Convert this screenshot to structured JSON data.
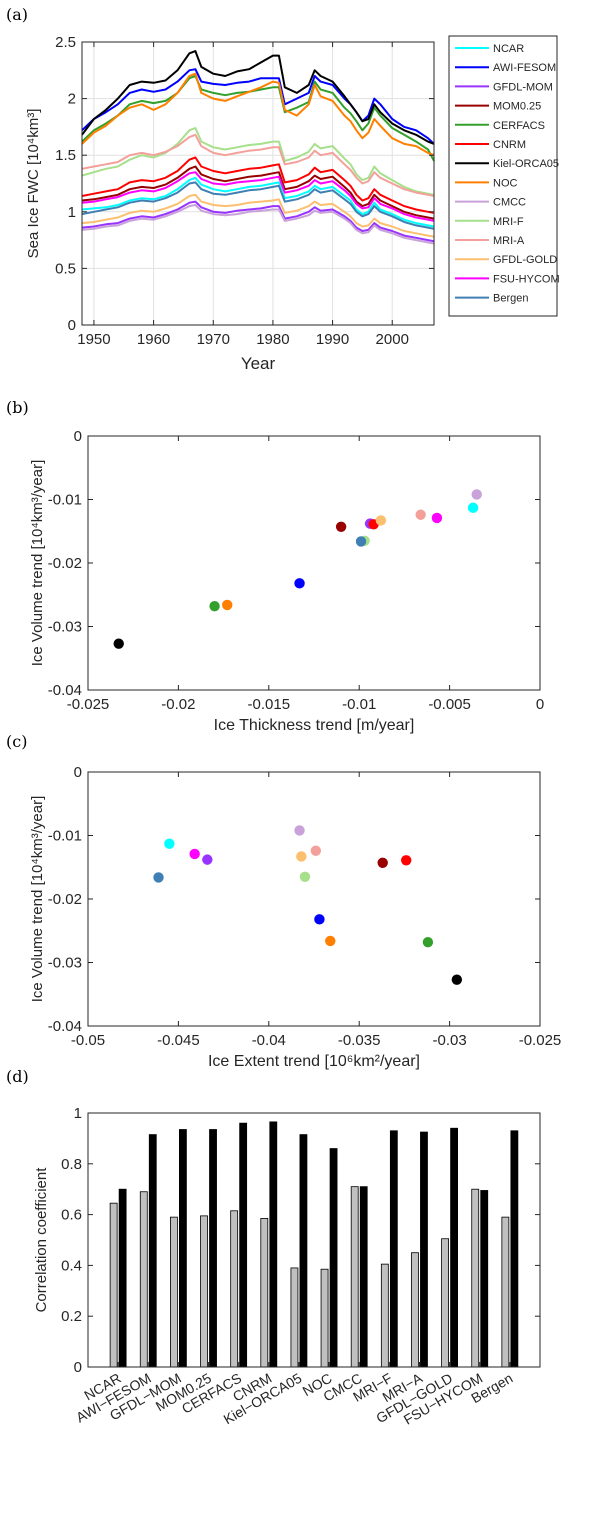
{
  "panel_labels": [
    "(a)",
    "(b)",
    "(c)",
    "(d)"
  ],
  "model_colors": {
    "NCAR": "#00ffff",
    "AWI-FESOM": "#0000ff",
    "GFDL-MOM": "#9933ff",
    "MOM0.25": "#990000",
    "CERFACS": "#33a02c",
    "CNRM": "#ff0000",
    "Kiel-ORCA05": "#000000",
    "NOC": "#ff7f00",
    "CMCC": "#c8a2d8",
    "MRI-F": "#a6e08a",
    "MRI-A": "#f4a09a",
    "GFDL-GOLD": "#fbbf6f",
    "FSU-HYCOM": "#ff00ff",
    "Bergen": "#3f7fb3"
  },
  "chart_data": [
    {
      "type": "line",
      "xlabel": "Year",
      "ylabel": "Sea Ice FWC  [10⁴km³]",
      "xlim": [
        1948,
        2007
      ],
      "ylim": [
        0,
        2.5
      ],
      "xticks": [
        1950,
        1960,
        1970,
        1980,
        1990,
        2000
      ],
      "yticks": [
        0,
        0.5,
        1,
        1.5,
        2,
        2.5
      ],
      "grid": true,
      "legend_position": "outside-right",
      "x": [
        1948,
        1950,
        1952,
        1954,
        1956,
        1958,
        1960,
        1962,
        1964,
        1966,
        1967,
        1968,
        1970,
        1972,
        1974,
        1976,
        1978,
        1980,
        1981,
        1982,
        1984,
        1986,
        1987,
        1988,
        1990,
        1992,
        1993,
        1994,
        1995,
        1996,
        1997,
        1998,
        2000,
        2002,
        2004,
        2006,
        2007
      ],
      "series": [
        {
          "name": "NCAR",
          "values": [
            1.02,
            1.03,
            1.04,
            1.06,
            1.1,
            1.12,
            1.11,
            1.14,
            1.2,
            1.28,
            1.3,
            1.24,
            1.2,
            1.18,
            1.2,
            1.22,
            1.23,
            1.25,
            1.26,
            1.12,
            1.14,
            1.18,
            1.23,
            1.2,
            1.22,
            1.14,
            1.1,
            1.02,
            0.98,
            1.0,
            1.08,
            1.02,
            0.98,
            0.93,
            0.9,
            0.88,
            0.87
          ]
        },
        {
          "name": "AWI-FESOM",
          "values": [
            1.72,
            1.82,
            1.88,
            1.95,
            2.05,
            2.08,
            2.06,
            2.08,
            2.15,
            2.25,
            2.26,
            2.15,
            2.13,
            2.12,
            2.14,
            2.15,
            2.18,
            2.18,
            2.18,
            1.95,
            2.0,
            2.05,
            2.2,
            2.15,
            2.12,
            2.0,
            1.95,
            1.88,
            1.8,
            1.85,
            2.0,
            1.95,
            1.82,
            1.75,
            1.72,
            1.65,
            1.6
          ]
        },
        {
          "name": "GFDL-MOM",
          "values": [
            0.86,
            0.87,
            0.89,
            0.9,
            0.94,
            0.96,
            0.95,
            0.98,
            1.02,
            1.08,
            1.09,
            1.04,
            1.0,
            0.99,
            1.01,
            1.02,
            1.03,
            1.05,
            1.05,
            0.94,
            0.96,
            1.0,
            1.04,
            1.01,
            1.02,
            0.96,
            0.92,
            0.86,
            0.83,
            0.84,
            0.9,
            0.86,
            0.83,
            0.79,
            0.77,
            0.75,
            0.74
          ]
        },
        {
          "name": "MOM0.25",
          "values": [
            1.1,
            1.11,
            1.13,
            1.15,
            1.2,
            1.22,
            1.21,
            1.24,
            1.3,
            1.38,
            1.4,
            1.33,
            1.29,
            1.27,
            1.29,
            1.31,
            1.32,
            1.34,
            1.35,
            1.2,
            1.22,
            1.27,
            1.32,
            1.29,
            1.31,
            1.22,
            1.17,
            1.09,
            1.05,
            1.07,
            1.15,
            1.1,
            1.05,
            1.0,
            0.97,
            0.95,
            0.94
          ]
        },
        {
          "name": "CERFACS",
          "values": [
            1.62,
            1.72,
            1.78,
            1.85,
            1.95,
            1.98,
            1.96,
            1.98,
            2.05,
            2.18,
            2.2,
            2.08,
            2.05,
            2.03,
            2.05,
            2.06,
            2.08,
            2.1,
            2.1,
            1.88,
            1.92,
            1.97,
            2.15,
            2.08,
            2.05,
            1.92,
            1.87,
            1.8,
            1.72,
            1.78,
            1.92,
            1.85,
            1.74,
            1.68,
            1.62,
            1.55,
            1.45
          ]
        },
        {
          "name": "CNRM",
          "values": [
            1.14,
            1.16,
            1.18,
            1.2,
            1.26,
            1.28,
            1.27,
            1.3,
            1.36,
            1.46,
            1.48,
            1.4,
            1.36,
            1.34,
            1.36,
            1.38,
            1.39,
            1.41,
            1.42,
            1.26,
            1.28,
            1.33,
            1.39,
            1.35,
            1.37,
            1.28,
            1.23,
            1.15,
            1.1,
            1.12,
            1.2,
            1.15,
            1.1,
            1.05,
            1.02,
            1.0,
            0.99
          ]
        },
        {
          "name": "Kiel-ORCA05",
          "values": [
            1.68,
            1.82,
            1.9,
            2.0,
            2.12,
            2.15,
            2.14,
            2.16,
            2.25,
            2.4,
            2.42,
            2.28,
            2.22,
            2.2,
            2.24,
            2.26,
            2.32,
            2.38,
            2.38,
            2.1,
            2.05,
            2.12,
            2.25,
            2.2,
            2.15,
            2.02,
            1.95,
            1.88,
            1.8,
            1.82,
            1.95,
            1.88,
            1.78,
            1.72,
            1.68,
            1.62,
            1.6
          ]
        },
        {
          "name": "NOC",
          "values": [
            1.6,
            1.7,
            1.76,
            1.85,
            1.92,
            1.95,
            1.9,
            1.95,
            2.05,
            2.2,
            2.22,
            2.05,
            2.0,
            1.98,
            2.02,
            2.06,
            2.1,
            2.15,
            2.14,
            1.9,
            1.85,
            1.95,
            2.12,
            2.02,
            1.98,
            1.85,
            1.8,
            1.72,
            1.65,
            1.7,
            1.82,
            1.76,
            1.65,
            1.6,
            1.58,
            1.52,
            1.5
          ]
        },
        {
          "name": "CMCC",
          "values": [
            0.84,
            0.85,
            0.87,
            0.88,
            0.92,
            0.94,
            0.93,
            0.96,
            1.0,
            1.05,
            1.06,
            1.01,
            0.98,
            0.97,
            0.98,
            1.0,
            1.01,
            1.02,
            1.02,
            0.92,
            0.94,
            0.97,
            1.01,
            0.99,
            1.0,
            0.94,
            0.9,
            0.84,
            0.81,
            0.82,
            0.88,
            0.84,
            0.81,
            0.77,
            0.75,
            0.73,
            0.72
          ]
        },
        {
          "name": "MRI-F",
          "values": [
            1.32,
            1.35,
            1.38,
            1.4,
            1.46,
            1.5,
            1.48,
            1.52,
            1.6,
            1.72,
            1.74,
            1.62,
            1.57,
            1.55,
            1.57,
            1.59,
            1.6,
            1.62,
            1.62,
            1.45,
            1.48,
            1.53,
            1.6,
            1.56,
            1.58,
            1.47,
            1.42,
            1.33,
            1.28,
            1.3,
            1.4,
            1.34,
            1.28,
            1.22,
            1.18,
            1.16,
            1.15
          ]
        },
        {
          "name": "MRI-A",
          "values": [
            1.38,
            1.4,
            1.42,
            1.44,
            1.5,
            1.52,
            1.5,
            1.53,
            1.58,
            1.66,
            1.68,
            1.58,
            1.52,
            1.5,
            1.52,
            1.54,
            1.55,
            1.57,
            1.57,
            1.42,
            1.44,
            1.48,
            1.54,
            1.5,
            1.52,
            1.42,
            1.37,
            1.3,
            1.25,
            1.27,
            1.35,
            1.3,
            1.25,
            1.2,
            1.17,
            1.15,
            1.14
          ]
        },
        {
          "name": "GFDL-GOLD",
          "values": [
            0.9,
            0.91,
            0.93,
            0.95,
            0.99,
            1.01,
            1.0,
            1.03,
            1.07,
            1.14,
            1.15,
            1.09,
            1.06,
            1.05,
            1.06,
            1.08,
            1.09,
            1.1,
            1.11,
            0.99,
            1.01,
            1.05,
            1.09,
            1.06,
            1.07,
            1.0,
            0.96,
            0.9,
            0.87,
            0.88,
            0.94,
            0.9,
            0.87,
            0.83,
            0.81,
            0.79,
            0.78
          ]
        },
        {
          "name": "FSU-HYCOM",
          "values": [
            1.08,
            1.09,
            1.11,
            1.13,
            1.17,
            1.19,
            1.18,
            1.21,
            1.27,
            1.34,
            1.35,
            1.29,
            1.25,
            1.24,
            1.26,
            1.27,
            1.28,
            1.3,
            1.31,
            1.17,
            1.19,
            1.23,
            1.28,
            1.25,
            1.27,
            1.19,
            1.14,
            1.07,
            1.03,
            1.04,
            1.12,
            1.07,
            1.03,
            0.98,
            0.95,
            0.93,
            0.92
          ]
        },
        {
          "name": "Bergen",
          "values": [
            0.98,
            1.0,
            1.02,
            1.04,
            1.08,
            1.1,
            1.09,
            1.12,
            1.17,
            1.25,
            1.26,
            1.2,
            1.16,
            1.15,
            1.17,
            1.19,
            1.2,
            1.22,
            1.23,
            1.09,
            1.11,
            1.15,
            1.2,
            1.17,
            1.19,
            1.11,
            1.07,
            1.0,
            0.96,
            0.98,
            1.05,
            1.0,
            0.96,
            0.91,
            0.88,
            0.86,
            0.85
          ]
        }
      ]
    },
    {
      "type": "scatter",
      "xlabel": "Ice Thickness trend [m/year]",
      "ylabel": "Ice Volume trend [10⁴km³/year]",
      "xlim": [
        -0.025,
        0
      ],
      "ylim": [
        -0.04,
        0
      ],
      "xticks": [
        -0.025,
        -0.02,
        -0.015,
        -0.01,
        -0.005,
        0
      ],
      "yticks": [
        -0.04,
        -0.03,
        -0.02,
        -0.01,
        0
      ],
      "grid": false,
      "points": [
        {
          "name": "NCAR",
          "x": -0.0037,
          "y": -0.0113
        },
        {
          "name": "AWI-FESOM",
          "x": -0.0133,
          "y": -0.0232
        },
        {
          "name": "GFDL-MOM",
          "x": -0.0094,
          "y": -0.0138
        },
        {
          "name": "MOM0.25",
          "x": -0.011,
          "y": -0.0143
        },
        {
          "name": "CERFACS",
          "x": -0.018,
          "y": -0.0268
        },
        {
          "name": "CNRM",
          "x": -0.0092,
          "y": -0.0139
        },
        {
          "name": "Kiel-ORCA05",
          "x": -0.0233,
          "y": -0.0327
        },
        {
          "name": "NOC",
          "x": -0.0173,
          "y": -0.0266
        },
        {
          "name": "CMCC",
          "x": -0.0035,
          "y": -0.0092
        },
        {
          "name": "MRI-F",
          "x": -0.0097,
          "y": -0.0165
        },
        {
          "name": "MRI-A",
          "x": -0.0066,
          "y": -0.0124
        },
        {
          "name": "GFDL-GOLD",
          "x": -0.0088,
          "y": -0.0133
        },
        {
          "name": "FSU-HYCOM",
          "x": -0.0057,
          "y": -0.0129
        },
        {
          "name": "Bergen",
          "x": -0.0099,
          "y": -0.0166
        }
      ]
    },
    {
      "type": "scatter",
      "xlabel": "Ice Extent trend [10⁶km²/year]",
      "ylabel": "Ice Volume trend [10⁴km³/year]",
      "xlim": [
        -0.05,
        -0.025
      ],
      "ylim": [
        -0.04,
        0
      ],
      "xticks": [
        -0.05,
        -0.045,
        -0.04,
        -0.035,
        -0.03,
        -0.025
      ],
      "yticks": [
        -0.04,
        -0.03,
        -0.02,
        -0.01,
        0
      ],
      "grid": false,
      "points": [
        {
          "name": "NCAR",
          "x": -0.0455,
          "y": -0.0113
        },
        {
          "name": "AWI-FESOM",
          "x": -0.0372,
          "y": -0.0232
        },
        {
          "name": "GFDL-MOM",
          "x": -0.0434,
          "y": -0.0138
        },
        {
          "name": "MOM0.25",
          "x": -0.0337,
          "y": -0.0143
        },
        {
          "name": "CERFACS",
          "x": -0.0312,
          "y": -0.0268
        },
        {
          "name": "CNRM",
          "x": -0.0324,
          "y": -0.0139
        },
        {
          "name": "Kiel-ORCA05",
          "x": -0.0296,
          "y": -0.0327
        },
        {
          "name": "NOC",
          "x": -0.0366,
          "y": -0.0266
        },
        {
          "name": "CMCC",
          "x": -0.0383,
          "y": -0.0092
        },
        {
          "name": "MRI-F",
          "x": -0.038,
          "y": -0.0165
        },
        {
          "name": "MRI-A",
          "x": -0.0374,
          "y": -0.0124
        },
        {
          "name": "GFDL-GOLD",
          "x": -0.0382,
          "y": -0.0133
        },
        {
          "name": "FSU-HYCOM",
          "x": -0.0441,
          "y": -0.0129
        },
        {
          "name": "Bergen",
          "x": -0.0461,
          "y": -0.0166
        }
      ]
    },
    {
      "type": "bar",
      "ylabel": "Correlation coefficient",
      "ylim": [
        0,
        1
      ],
      "yticks": [
        0,
        0.2,
        0.4,
        0.6,
        0.8,
        1
      ],
      "grid": false,
      "categories": [
        "NCAR",
        "AWI−FESOM",
        "GFDL−MOM",
        "MOM0.25",
        "CERFACS",
        "CNRM",
        "Kiel−ORCA05",
        "NOC",
        "CMCC",
        "MRI−F",
        "MRI−A",
        "GFDL−GOLD",
        "FSU−HYCOM",
        "Bergen"
      ],
      "series": [
        {
          "color": "#c0c0c0",
          "values": [
            0.645,
            0.69,
            0.59,
            0.595,
            0.615,
            0.585,
            0.39,
            0.385,
            0.71,
            0.405,
            0.45,
            0.505,
            0.7,
            0.59
          ]
        },
        {
          "color": "#000000",
          "values": [
            0.7,
            0.915,
            0.935,
            0.935,
            0.96,
            0.965,
            0.915,
            0.86,
            0.71,
            0.93,
            0.925,
            0.94,
            0.695,
            0.93
          ]
        }
      ]
    }
  ]
}
